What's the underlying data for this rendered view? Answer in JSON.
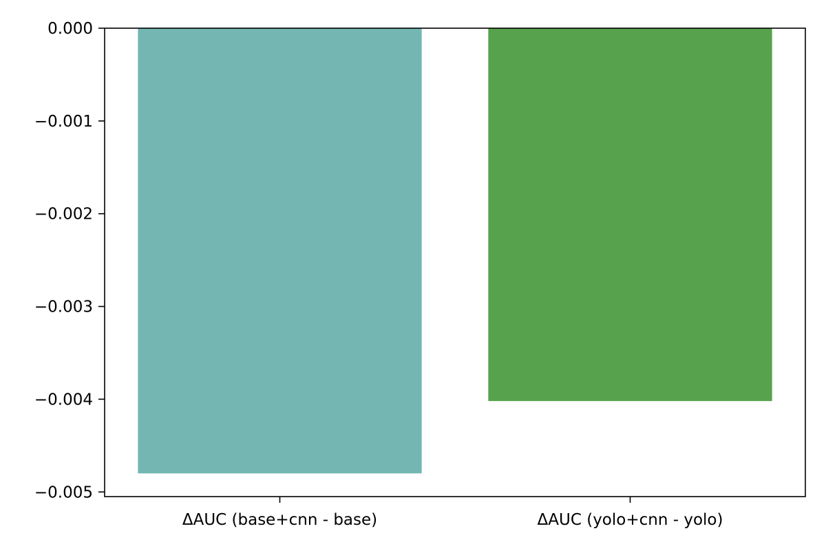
{
  "chart_data": {
    "type": "bar",
    "categories": [
      "ΔAUC (base+cnn - base)",
      "ΔAUC (yolo+cnn - yolo)"
    ],
    "values": [
      -0.0048,
      -0.00402
    ],
    "colors": [
      "#74b7b2",
      "#57a24c"
    ],
    "title": "",
    "xlabel": "",
    "ylabel": "",
    "ylim": [
      -0.00505,
      0.0
    ],
    "yticks": [
      0.0,
      -0.001,
      -0.002,
      -0.003,
      -0.004,
      -0.005
    ],
    "ytick_labels": [
      "0.000",
      "−0.001",
      "−0.002",
      "−0.003",
      "−0.004",
      "−0.005"
    ],
    "grid": false,
    "legend": "none"
  }
}
